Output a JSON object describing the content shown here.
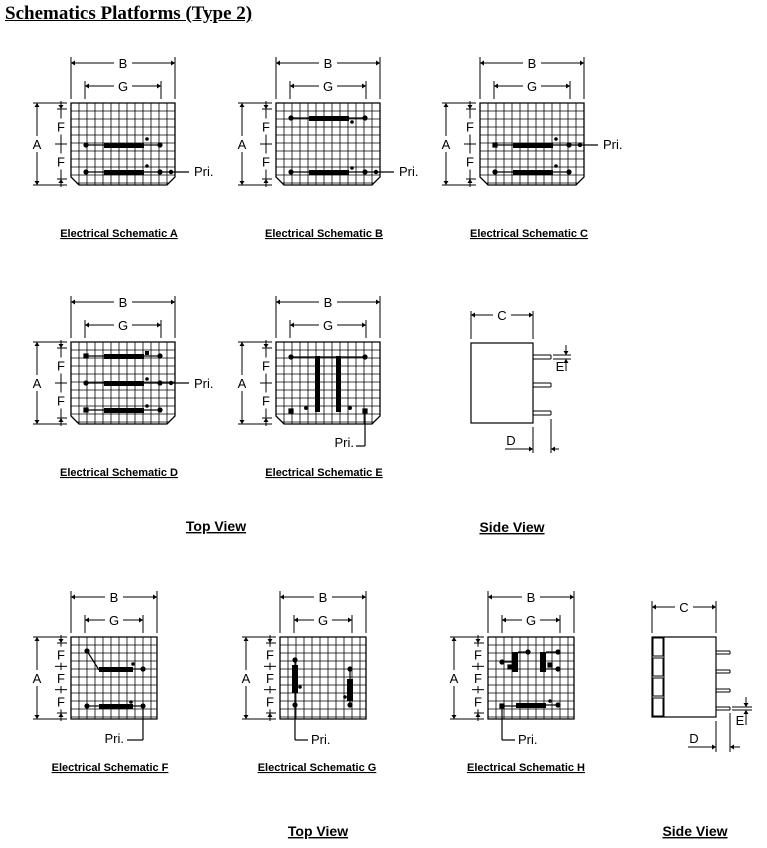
{
  "title": "Schematics Platforms (Type 2)",
  "dim_labels": {
    "A": "A",
    "B": "B",
    "C": "C",
    "D": "D",
    "E": "E",
    "F": "F",
    "G": "G"
  },
  "pri_label": "Pri.",
  "schematics": [
    {
      "id": "A",
      "caption": "Electrical Schematic A"
    },
    {
      "id": "B",
      "caption": "Electrical Schematic B"
    },
    {
      "id": "C",
      "caption": "Electrical Schematic C"
    },
    {
      "id": "D",
      "caption": "Electrical Schematic D"
    },
    {
      "id": "E",
      "caption": "Electrical Schematic E"
    },
    {
      "id": "F",
      "caption": "Electrical Schematic F"
    },
    {
      "id": "G",
      "caption": "Electrical Schematic G"
    },
    {
      "id": "H",
      "caption": "Electrical Schematic H"
    }
  ],
  "views": {
    "top_view_1": "Top View",
    "side_view_1": "Side View",
    "top_view_2": "Top View",
    "side_view_2": "Side View"
  }
}
